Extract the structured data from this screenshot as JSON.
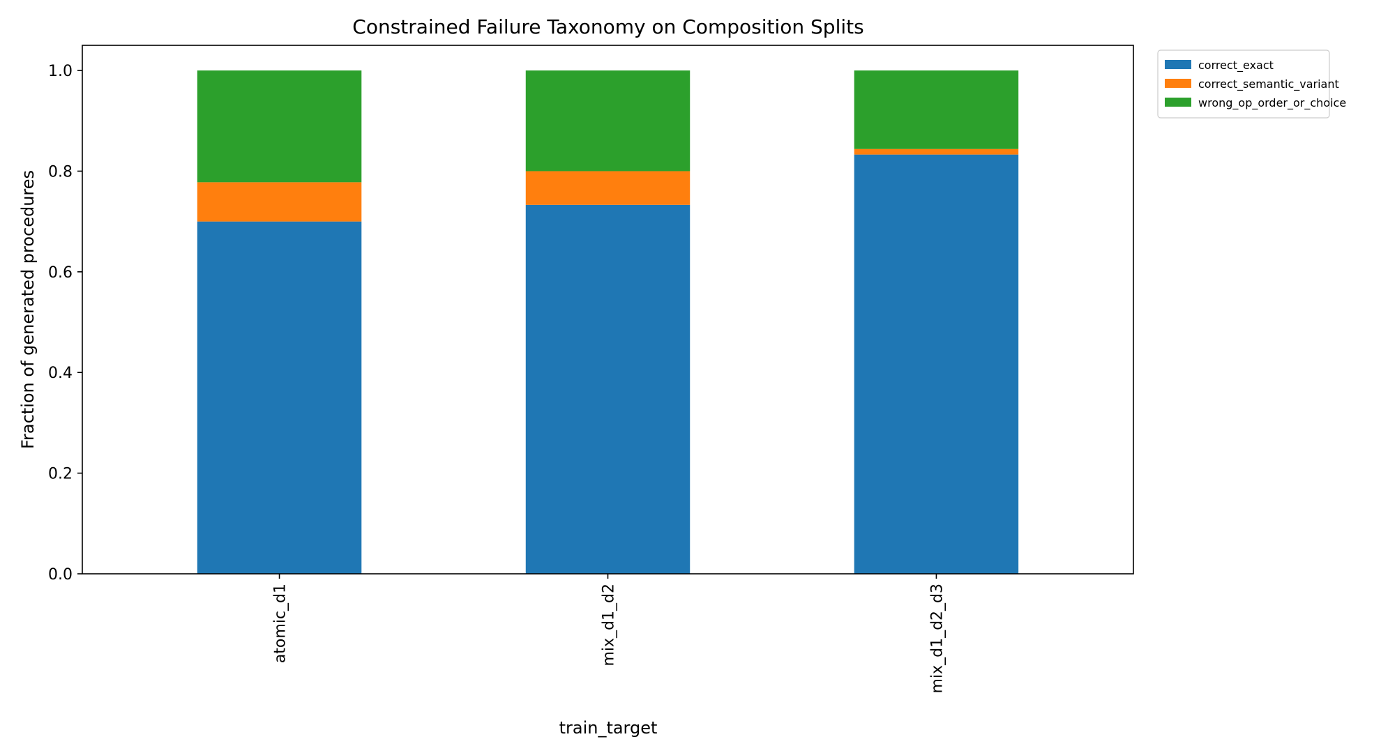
{
  "chart_data": {
    "type": "bar",
    "stacked": true,
    "title": "Constrained Failure Taxonomy on Composition Splits",
    "xlabel": "train_target",
    "ylabel": "Fraction of generated procedures",
    "categories": [
      "atomic_d1",
      "mix_d1_d2",
      "mix_d1_d2_d3"
    ],
    "series": [
      {
        "name": "correct_exact",
        "color": "#1f77b4",
        "values": [
          0.7,
          0.733,
          0.833
        ]
      },
      {
        "name": "correct_semantic_variant",
        "color": "#ff7f0e",
        "values": [
          0.078,
          0.067,
          0.011
        ]
      },
      {
        "name": "wrong_op_order_or_choice",
        "color": "#2ca02c",
        "values": [
          0.222,
          0.2,
          0.156
        ]
      }
    ],
    "ylim": [
      0,
      1.05
    ],
    "yticks": [
      "0.0",
      "0.2",
      "0.4",
      "0.6",
      "0.8",
      "1.0"
    ],
    "legend_position": "upper right, outside plot",
    "grid": false
  }
}
